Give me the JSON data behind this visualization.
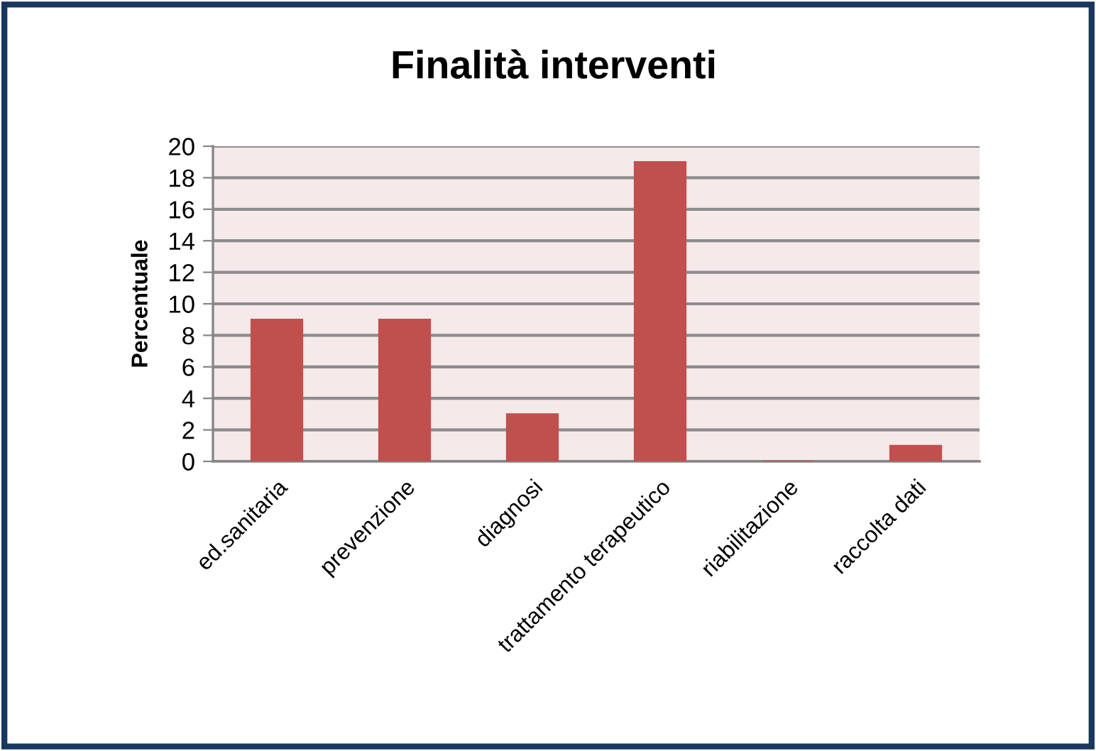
{
  "chart_data": {
    "type": "bar",
    "title": "Finalità interventi",
    "ylabel": "Percentuale",
    "categories": [
      "ed.sanitaria",
      "prevenzione",
      "diagnosi",
      "trattamento terapeutico",
      "riabilitazione",
      "raccolta dati"
    ],
    "values": [
      9,
      9,
      3,
      19,
      0,
      1
    ],
    "color": "#c0504d",
    "ylim": [
      0,
      20
    ],
    "yticks": [
      0,
      2,
      4,
      6,
      8,
      10,
      12,
      14,
      16,
      18,
      20
    ],
    "grid": "y"
  }
}
